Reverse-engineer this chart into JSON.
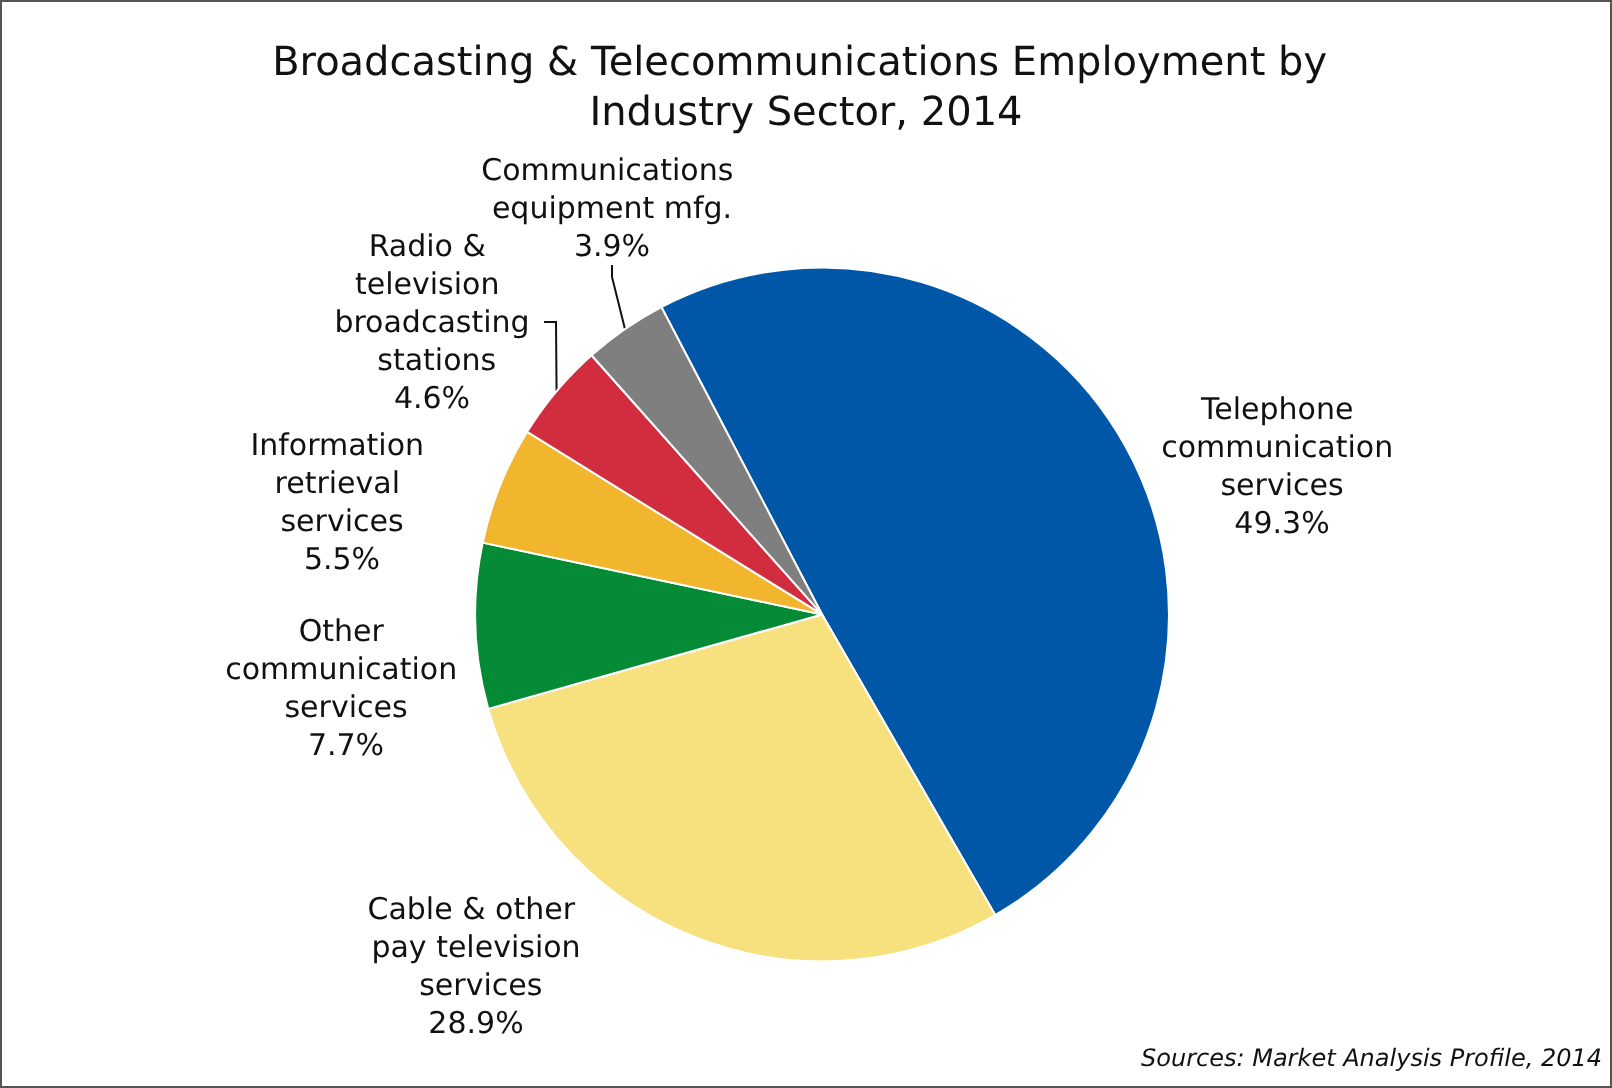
{
  "chart_data": {
    "type": "pie",
    "title": "Broadcasting & Telecommunications Employment by Industry Sector, 2014",
    "categories": [
      "Telephone communication services",
      "Cable & other pay television services",
      "Other communication services",
      "Information retrieval services",
      "Radio & television broadcasting stations",
      "Communications equipment mfg."
    ],
    "values": [
      49.3,
      28.9,
      7.7,
      5.5,
      4.6,
      3.9
    ],
    "colors": [
      "#0057a8",
      "#f7e07e",
      "#058a35",
      "#f2b52e",
      "#d22d3f",
      "#7f7f7f"
    ],
    "value_labels": [
      "49.3%",
      "28.9%",
      "7.7%",
      "5.5%",
      "4.6%",
      "3.9%"
    ],
    "legend": false,
    "annotations": [
      "Sources: Market Analysis Profile, 2014"
    ]
  }
}
